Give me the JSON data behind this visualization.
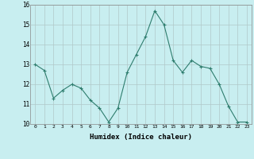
{
  "x": [
    0,
    1,
    2,
    3,
    4,
    5,
    6,
    7,
    8,
    9,
    10,
    11,
    12,
    13,
    14,
    15,
    16,
    17,
    18,
    19,
    20,
    21,
    22,
    23
  ],
  "y": [
    13.0,
    12.7,
    11.3,
    11.7,
    12.0,
    11.8,
    11.2,
    10.8,
    10.1,
    10.8,
    12.6,
    13.5,
    14.4,
    15.7,
    15.0,
    13.2,
    12.6,
    13.2,
    12.9,
    12.8,
    12.0,
    10.9,
    10.1,
    10.1
  ],
  "line_color": "#2e7d6e",
  "marker": "+",
  "marker_size": 3,
  "bg_color": "#c8eef0",
  "grid_color": "#b0c8c8",
  "xlabel": "Humidex (Indice chaleur)",
  "ylim": [
    10,
    16
  ],
  "yticks": [
    10,
    11,
    12,
    13,
    14,
    15,
    16
  ],
  "xticks": [
    0,
    1,
    2,
    3,
    4,
    5,
    6,
    7,
    8,
    9,
    10,
    11,
    12,
    13,
    14,
    15,
    16,
    17,
    18,
    19,
    20,
    21,
    22,
    23
  ]
}
